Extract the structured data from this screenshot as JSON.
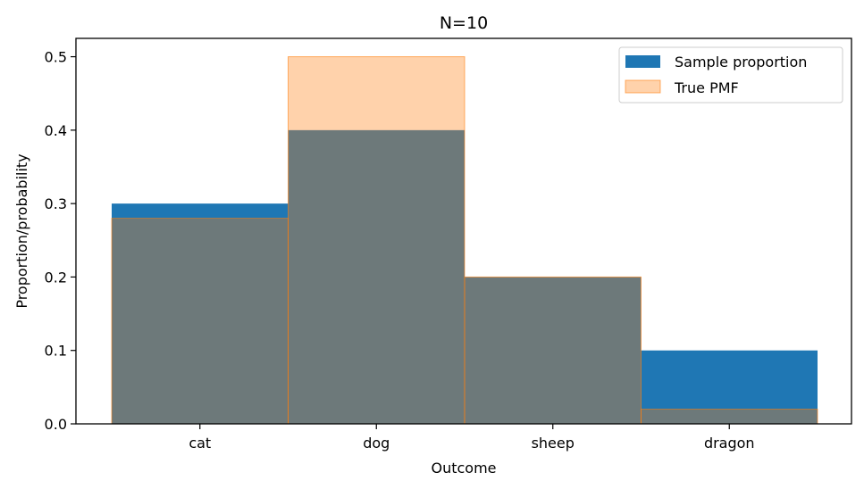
{
  "chart_data": {
    "type": "bar",
    "title": "N=10",
    "xlabel": "Outcome",
    "ylabel": "Proportion/probability",
    "categories": [
      "cat",
      "dog",
      "sheep",
      "dragon"
    ],
    "series": [
      {
        "name": "Sample proportion",
        "values": [
          0.3,
          0.4,
          0.2,
          0.1
        ],
        "color": "#1f77b4"
      },
      {
        "name": "True PMF",
        "values": [
          0.28,
          0.5,
          0.2,
          0.02
        ],
        "color": "#ff7f0e",
        "fill_opacity": 0.35
      }
    ],
    "ylim": [
      0,
      0.525
    ],
    "yticks": [
      "0.0",
      "0.1",
      "0.2",
      "0.3",
      "0.4",
      "0.5"
    ],
    "ytick_values": [
      0,
      0.1,
      0.2,
      0.3,
      0.4,
      0.5
    ],
    "legend_position": "top-right",
    "grid": false
  }
}
